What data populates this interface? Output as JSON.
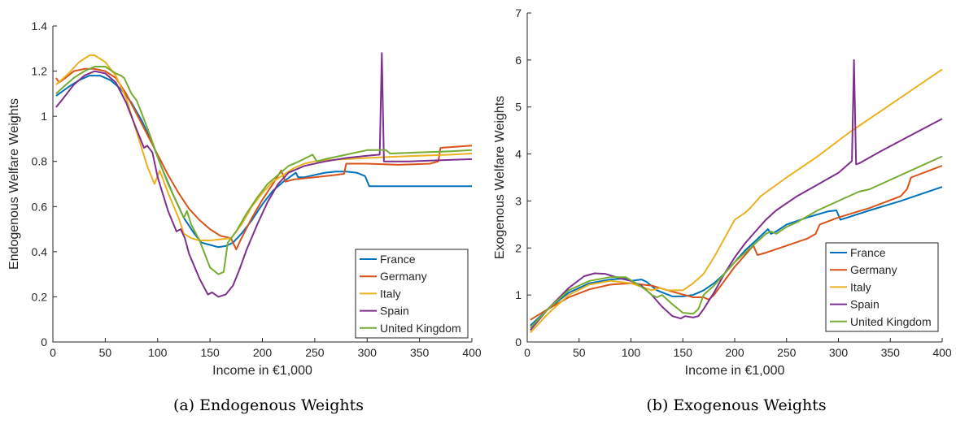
{
  "chart_data": [
    {
      "type": "line",
      "caption": "(a) Endogenous Weights",
      "xlabel": "Income in €1,000",
      "ylabel": "Endogenous Welfare Weights",
      "xlim": [
        0,
        400
      ],
      "ylim": [
        0,
        1.4
      ],
      "xticks": [
        "0",
        "50",
        "100",
        "150",
        "200",
        "250",
        "300",
        "350",
        "400"
      ],
      "yticks": [
        "0",
        "0.2",
        "0.4",
        "0.6",
        "0.8",
        "1",
        "1.2",
        "1.4"
      ],
      "legend_position": "bottom-right",
      "series": [
        {
          "name": "France",
          "color": "#0072BD",
          "x": [
            3,
            15,
            25,
            35,
            45,
            55,
            65,
            75,
            85,
            95,
            105,
            115,
            125,
            135,
            142,
            150,
            158,
            165,
            172,
            180,
            190,
            200,
            210,
            220,
            232,
            234,
            240,
            250,
            260,
            270,
            280,
            290,
            298,
            302,
            320,
            350,
            380,
            400
          ],
          "y": [
            1.09,
            1.13,
            1.16,
            1.18,
            1.18,
            1.16,
            1.12,
            1.06,
            0.98,
            0.88,
            0.76,
            0.65,
            0.55,
            0.48,
            0.44,
            0.43,
            0.42,
            0.425,
            0.44,
            0.48,
            0.54,
            0.61,
            0.67,
            0.71,
            0.75,
            0.73,
            0.73,
            0.74,
            0.75,
            0.755,
            0.755,
            0.75,
            0.735,
            0.69,
            0.69,
            0.69,
            0.69,
            0.69
          ]
        },
        {
          "name": "Germany",
          "color": "#D95319",
          "x": [
            3,
            6,
            12,
            20,
            30,
            40,
            50,
            60,
            70,
            80,
            90,
            100,
            110,
            120,
            130,
            140,
            150,
            160,
            170,
            175,
            180,
            190,
            200,
            210,
            218,
            222,
            230,
            250,
            270,
            278,
            280,
            300,
            330,
            360,
            368,
            370,
            400
          ],
          "y": [
            1.17,
            1.15,
            1.17,
            1.2,
            1.21,
            1.21,
            1.2,
            1.17,
            1.1,
            1.01,
            0.92,
            0.83,
            0.74,
            0.66,
            0.59,
            0.54,
            0.5,
            0.47,
            0.46,
            0.41,
            0.46,
            0.55,
            0.63,
            0.7,
            0.76,
            0.71,
            0.72,
            0.73,
            0.74,
            0.745,
            0.79,
            0.79,
            0.785,
            0.79,
            0.8,
            0.86,
            0.87
          ]
        },
        {
          "name": "Italy",
          "color": "#EDB120",
          "x": [
            3,
            15,
            25,
            35,
            40,
            50,
            60,
            70,
            80,
            90,
            97,
            102,
            110,
            120,
            125,
            132,
            140,
            150,
            160,
            170,
            180,
            190,
            200,
            210,
            220,
            230,
            240,
            250,
            260,
            280,
            300,
            320,
            350,
            380,
            400
          ],
          "y": [
            1.14,
            1.19,
            1.24,
            1.27,
            1.27,
            1.24,
            1.18,
            1.08,
            0.93,
            0.78,
            0.7,
            0.76,
            0.66,
            0.55,
            0.48,
            0.46,
            0.45,
            0.45,
            0.455,
            0.46,
            0.52,
            0.6,
            0.66,
            0.71,
            0.74,
            0.77,
            0.79,
            0.8,
            0.805,
            0.81,
            0.815,
            0.82,
            0.825,
            0.83,
            0.835
          ]
        },
        {
          "name": "Spain",
          "color": "#7E2F8E",
          "x": [
            3,
            10,
            20,
            30,
            40,
            50,
            60,
            70,
            80,
            87,
            90,
            95,
            100,
            110,
            118,
            122,
            126,
            130,
            140,
            148,
            152,
            158,
            165,
            172,
            178,
            185,
            195,
            205,
            215,
            225,
            240,
            260,
            280,
            300,
            312,
            314,
            316,
            320,
            340,
            370,
            400
          ],
          "y": [
            1.04,
            1.08,
            1.14,
            1.18,
            1.2,
            1.19,
            1.15,
            1.06,
            0.94,
            0.86,
            0.87,
            0.84,
            0.73,
            0.58,
            0.49,
            0.5,
            0.46,
            0.39,
            0.28,
            0.21,
            0.22,
            0.2,
            0.21,
            0.25,
            0.32,
            0.41,
            0.52,
            0.62,
            0.7,
            0.75,
            0.78,
            0.8,
            0.815,
            0.825,
            0.83,
            1.28,
            0.8,
            0.8,
            0.8,
            0.805,
            0.81
          ]
        },
        {
          "name": "United Kingdom",
          "color": "#77AC30",
          "x": [
            3,
            10,
            20,
            30,
            40,
            50,
            60,
            65,
            68,
            75,
            80,
            90,
            100,
            110,
            120,
            125,
            128,
            132,
            140,
            150,
            158,
            163,
            167,
            175,
            185,
            195,
            205,
            215,
            225,
            235,
            248,
            252,
            260,
            280,
            300,
            318,
            322,
            350,
            380,
            400
          ],
          "y": [
            1.1,
            1.13,
            1.17,
            1.2,
            1.22,
            1.22,
            1.19,
            1.18,
            1.17,
            1.1,
            1.07,
            0.95,
            0.82,
            0.7,
            0.6,
            0.55,
            0.58,
            0.52,
            0.45,
            0.33,
            0.3,
            0.31,
            0.44,
            0.49,
            0.57,
            0.64,
            0.7,
            0.74,
            0.78,
            0.8,
            0.83,
            0.8,
            0.81,
            0.83,
            0.85,
            0.85,
            0.835,
            0.84,
            0.845,
            0.85
          ]
        }
      ]
    },
    {
      "type": "line",
      "caption": "(b) Exogenous Weights",
      "xlabel": "Income in €1,000",
      "ylabel": "Exogenous Welfare Weights",
      "xlim": [
        0,
        400
      ],
      "ylim": [
        0,
        7
      ],
      "xticks": [
        "0",
        "50",
        "100",
        "150",
        "200",
        "250",
        "300",
        "350",
        "400"
      ],
      "yticks": [
        "0",
        "1",
        "2",
        "3",
        "4",
        "5",
        "6",
        "7"
      ],
      "legend_position": "bottom-right",
      "series": [
        {
          "name": "France",
          "color": "#0072BD",
          "x": [
            3,
            20,
            40,
            60,
            80,
            95,
            100,
            110,
            115,
            125,
            140,
            150,
            160,
            170,
            180,
            190,
            200,
            210,
            220,
            232,
            235,
            240,
            250,
            270,
            290,
            298,
            302,
            330,
            360,
            400
          ],
          "y": [
            0.35,
            0.7,
            1.05,
            1.25,
            1.33,
            1.35,
            1.3,
            1.33,
            1.28,
            1.1,
            0.97,
            0.97,
            1.0,
            1.1,
            1.25,
            1.45,
            1.7,
            1.95,
            2.15,
            2.4,
            2.3,
            2.35,
            2.5,
            2.65,
            2.78,
            2.8,
            2.6,
            2.8,
            3.0,
            3.3
          ]
        },
        {
          "name": "Germany",
          "color": "#D95319",
          "x": [
            3,
            20,
            40,
            60,
            80,
            100,
            120,
            140,
            160,
            170,
            175,
            180,
            190,
            200,
            210,
            218,
            222,
            230,
            250,
            270,
            278,
            282,
            300,
            330,
            360,
            366,
            370,
            400
          ],
          "y": [
            0.47,
            0.7,
            0.95,
            1.12,
            1.22,
            1.25,
            1.2,
            1.07,
            0.95,
            0.95,
            0.9,
            1.0,
            1.3,
            1.6,
            1.85,
            2.05,
            1.85,
            1.9,
            2.05,
            2.2,
            2.3,
            2.5,
            2.65,
            2.85,
            3.1,
            3.25,
            3.5,
            3.75
          ]
        },
        {
          "name": "Italy",
          "color": "#EDB120",
          "x": [
            3,
            20,
            40,
            60,
            80,
            100,
            120,
            128,
            135,
            150,
            160,
            170,
            180,
            190,
            200,
            210,
            215,
            225,
            250,
            280,
            310,
            350,
            400
          ],
          "y": [
            0.2,
            0.6,
            1.0,
            1.22,
            1.3,
            1.25,
            1.1,
            1.15,
            1.1,
            1.1,
            1.25,
            1.45,
            1.8,
            2.2,
            2.6,
            2.75,
            2.85,
            3.1,
            3.5,
            3.95,
            4.45,
            5.05,
            5.8
          ]
        },
        {
          "name": "Spain",
          "color": "#7E2F8E",
          "x": [
            3,
            20,
            40,
            55,
            65,
            75,
            90,
            100,
            110,
            120,
            130,
            140,
            148,
            152,
            160,
            165,
            170,
            180,
            190,
            200,
            210,
            220,
            230,
            240,
            260,
            280,
            300,
            313,
            315,
            317,
            320,
            340,
            370,
            400
          ],
          "y": [
            0.25,
            0.7,
            1.15,
            1.4,
            1.46,
            1.45,
            1.35,
            1.3,
            1.2,
            1.0,
            0.75,
            0.55,
            0.5,
            0.55,
            0.52,
            0.55,
            0.7,
            1.05,
            1.45,
            1.8,
            2.1,
            2.35,
            2.6,
            2.8,
            3.1,
            3.35,
            3.6,
            3.85,
            6.0,
            3.78,
            3.8,
            4.05,
            4.4,
            4.75
          ]
        },
        {
          "name": "United Kingdom",
          "color": "#77AC30",
          "x": [
            3,
            20,
            40,
            60,
            80,
            95,
            105,
            115,
            120,
            125,
            130,
            140,
            150,
            160,
            165,
            170,
            180,
            190,
            200,
            210,
            220,
            230,
            235,
            240,
            250,
            260,
            280,
            300,
            320,
            330,
            360,
            400
          ],
          "y": [
            0.3,
            0.7,
            1.1,
            1.3,
            1.38,
            1.38,
            1.25,
            1.1,
            1.0,
            0.95,
            1.0,
            0.8,
            0.62,
            0.6,
            0.7,
            1.0,
            1.2,
            1.45,
            1.7,
            1.9,
            2.1,
            2.3,
            2.35,
            2.3,
            2.45,
            2.55,
            2.8,
            3.0,
            3.2,
            3.25,
            3.55,
            3.95
          ]
        }
      ]
    }
  ]
}
